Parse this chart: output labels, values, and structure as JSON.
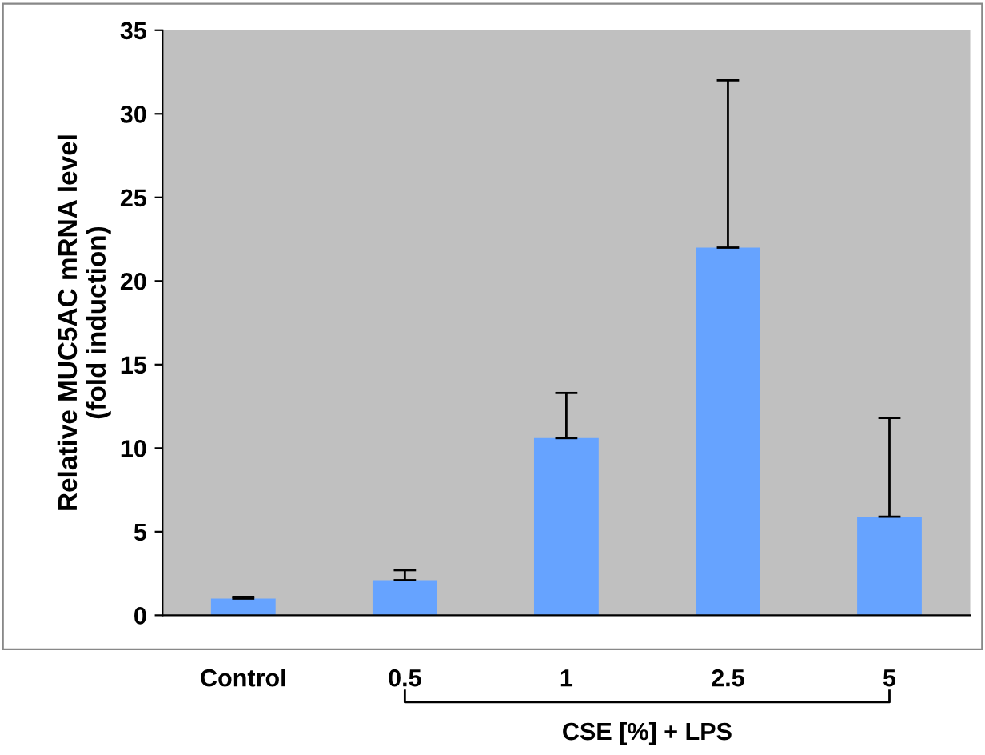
{
  "chart_data": {
    "type": "bar",
    "categories": [
      "Control",
      "0.5",
      "1",
      "2.5",
      "5"
    ],
    "values": [
      1.0,
      2.1,
      10.6,
      22.0,
      5.9
    ],
    "errors": [
      [
        1.0,
        1.1
      ],
      [
        2.1,
        2.7
      ],
      [
        10.6,
        13.3
      ],
      [
        22.0,
        32.0
      ],
      [
        5.9,
        11.8
      ]
    ],
    "color": "#66a3ff",
    "ylabel": "Relative MUC5AC mRNA level\n(fold induction)",
    "xlabel": "CSE [%] + LPS",
    "ylim": [
      0,
      35
    ],
    "yticks": [
      0,
      5,
      10,
      15,
      20,
      25,
      30,
      35
    ],
    "grid": false
  }
}
